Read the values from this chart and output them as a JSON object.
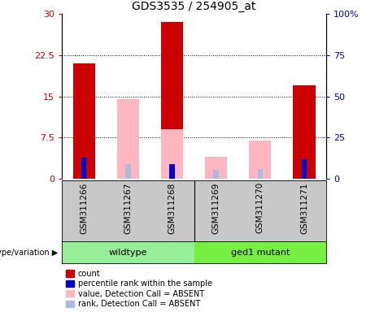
{
  "title": "GDS3535 / 254905_at",
  "samples": [
    "GSM311266",
    "GSM311267",
    "GSM311268",
    "GSM311269",
    "GSM311270",
    "GSM311271"
  ],
  "wildtype_label": "wildtype",
  "mutant_label": "ged1 mutant",
  "red_values": [
    21.0,
    null,
    28.5,
    null,
    null,
    17.0
  ],
  "blue_values": [
    13.0,
    null,
    9.0,
    null,
    null,
    12.0
  ],
  "pink_values": [
    null,
    14.5,
    9.0,
    4.0,
    7.0,
    null
  ],
  "lav_values": [
    null,
    9.0,
    null,
    5.5,
    6.0,
    null
  ],
  "ylim_left": [
    0,
    30
  ],
  "ylim_right": [
    0,
    100
  ],
  "yticks_left": [
    0,
    7.5,
    15,
    22.5,
    30
  ],
  "ytick_labels_left": [
    "0",
    "7.5",
    "15",
    "22.5",
    "30"
  ],
  "yticks_right": [
    0,
    25,
    50,
    75,
    100
  ],
  "ytick_labels_right": [
    "0",
    "25",
    "50",
    "75",
    "100%"
  ],
  "red_color": "#CC0000",
  "blue_color": "#0000CC",
  "pink_color": "#FFB6C1",
  "lav_color": "#AABBDD",
  "bar_width": 0.5,
  "blue_bar_width": 0.12,
  "bg_plot": "#FFFFFF",
  "bg_sample_row": "#C8C8C8",
  "wildtype_color": "#99EE99",
  "mutant_color": "#77EE44",
  "legend_labels": [
    "count",
    "percentile rank within the sample",
    "value, Detection Call = ABSENT",
    "rank, Detection Call = ABSENT"
  ],
  "genotype_label": "genotype/variation",
  "title_fontsize": 10,
  "tick_fontsize": 8,
  "sample_fontsize": 7.5,
  "legend_fontsize": 7,
  "geno_fontsize": 8
}
